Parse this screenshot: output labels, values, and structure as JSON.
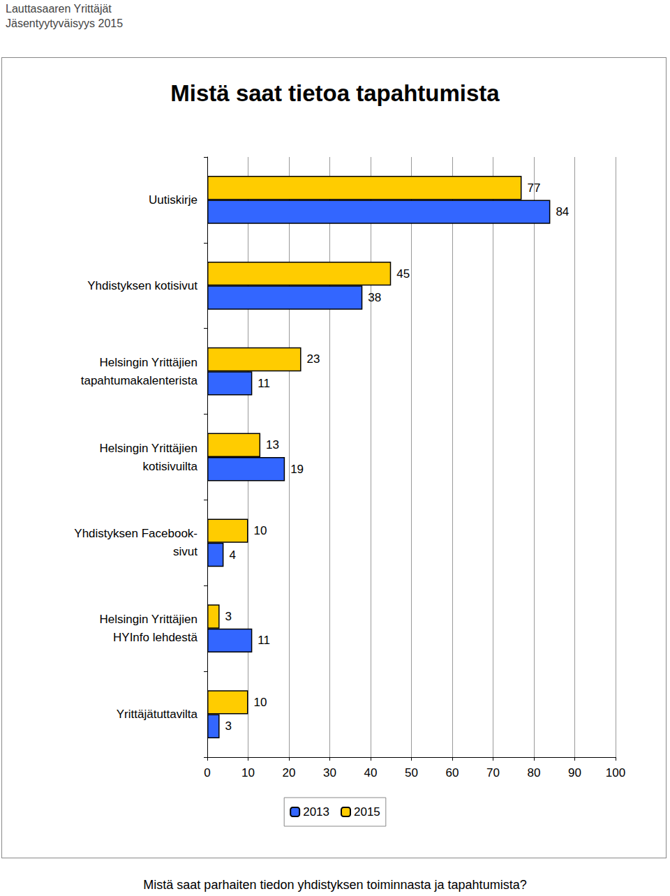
{
  "header": [
    "Lauttasaaren Yrittäjät",
    "Jäsentyytyväisyys 2015"
  ],
  "caption": "Mistä saat parhaiten tiedon yhdistyksen toiminnasta ja tapahtumista?",
  "chart_data": {
    "type": "bar",
    "orientation": "horizontal",
    "title": "Mistä saat tietoa tapahtumista",
    "categories": [
      "Uutiskirje",
      "Yhdistyksen kotisivut",
      "Helsingin Yrittäjien\ntapahtumakalenterista",
      "Helsingin Yrittäjien\nkotisivuilta",
      "Yhdistyksen Facebook-\nsivut",
      "Helsingin Yrittäjien\nHYInfo lehdestä",
      "Yrittäjätuttavilta"
    ],
    "series": [
      {
        "name": "2013",
        "color": "#3366ff",
        "values": [
          84,
          38,
          11,
          19,
          4,
          11,
          3
        ]
      },
      {
        "name": "2015",
        "color": "#ffcc00",
        "values": [
          77,
          45,
          23,
          13,
          10,
          3,
          10
        ]
      }
    ],
    "xlim": [
      0,
      100
    ],
    "xticks": [
      0,
      10,
      20,
      30,
      40,
      50,
      60,
      70,
      80,
      90,
      100
    ],
    "grid": true,
    "data_labels": true,
    "legend": "bottom"
  }
}
